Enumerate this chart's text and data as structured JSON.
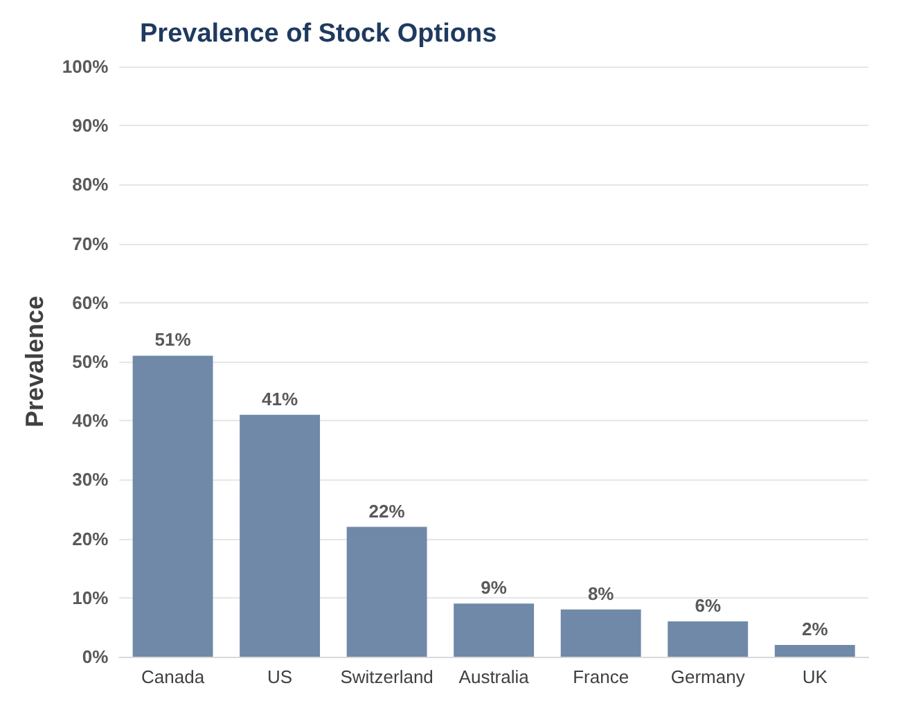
{
  "chart_data": {
    "type": "bar",
    "title": "Prevalence of Stock Options",
    "ylabel": "Prevalence",
    "categories": [
      "Canada",
      "US",
      "Switzerland",
      "Australia",
      "France",
      "Germany",
      "UK"
    ],
    "values": [
      51,
      41,
      22,
      9,
      8,
      6,
      2
    ],
    "color": "#7089a8",
    "value_labels": [
      "51%",
      "41%",
      "22%",
      "9%",
      "8%",
      "6%",
      "2%"
    ],
    "ylim": [
      0,
      100
    ],
    "yticks": [
      {
        "value": 0,
        "label": "0%"
      },
      {
        "value": 10,
        "label": "10%"
      },
      {
        "value": 20,
        "label": "20%"
      },
      {
        "value": 30,
        "label": "30%"
      },
      {
        "value": 40,
        "label": "40%"
      },
      {
        "value": 50,
        "label": "50%"
      },
      {
        "value": 60,
        "label": "60%"
      },
      {
        "value": 70,
        "label": "70%"
      },
      {
        "value": 80,
        "label": "80%"
      },
      {
        "value": 90,
        "label": "90%"
      },
      {
        "value": 100,
        "label": "100%"
      }
    ],
    "grid": "y"
  }
}
